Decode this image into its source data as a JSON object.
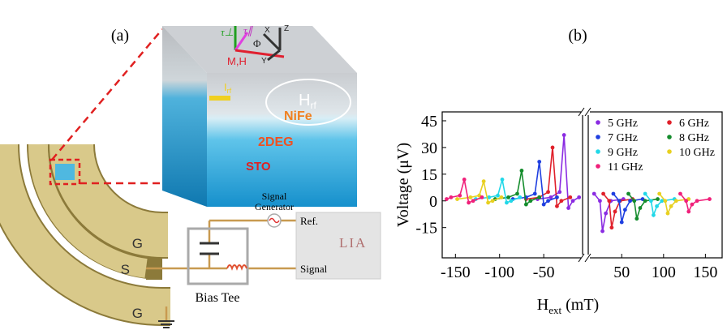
{
  "panel_a": {
    "label": "(a)",
    "layers": [
      "NiFe",
      "2DEG",
      "STO"
    ],
    "pads": [
      "G",
      "S",
      "G"
    ],
    "signal_generator": [
      "Signal",
      "Generator"
    ],
    "ref": "Ref.",
    "lia": "LIA",
    "signal": "Signal",
    "bias_tee": "Bias Tee",
    "vectors": {
      "tau_perp": "τ⊥",
      "tau_par": "τ∥",
      "phi": "Φ",
      "mh": "M,H",
      "x": "X",
      "y": "Y",
      "z": "Z",
      "irf": "I",
      "irf_sub": "rf",
      "hrf": "H",
      "hrf_sub": "rf"
    }
  },
  "chart_data": {
    "type": "line",
    "title": "(b)",
    "ylabel": "Voltage (μV)",
    "xlabel": "H",
    "xlabel_sub": "ext",
    "xlabel_unit": " (mT)",
    "xlim": [
      -165,
      170
    ],
    "xbreak": [
      -6,
      10
    ],
    "xticks": [
      -150,
      -100,
      -50,
      50,
      100,
      150
    ],
    "ylim": [
      -32,
      50
    ],
    "yticks": [
      -15,
      0,
      15,
      30,
      45
    ],
    "series": [
      {
        "name": "5 GHz",
        "color": "#8a2be2",
        "x": [
          -57,
          -42,
          -32,
          -27,
          -22,
          -17,
          -10,
          17,
          24,
          27,
          31,
          37,
          52
        ],
        "values": [
          1,
          2,
          5,
          37,
          -4,
          0,
          2,
          4,
          0,
          -17,
          -7,
          0,
          1
        ]
      },
      {
        "name": "6 GHz",
        "color": "#e0202a",
        "x": [
          -70,
          -55,
          -45,
          -40,
          -35,
          -30,
          -20,
          28,
          35,
          38,
          42,
          48,
          63
        ],
        "values": [
          1,
          2,
          5,
          30,
          -3,
          0,
          2,
          4,
          0,
          -15,
          -6,
          0,
          1
        ]
      },
      {
        "name": "7 GHz",
        "color": "#1f3fe0",
        "x": [
          -85,
          -70,
          -60,
          -55,
          -50,
          -45,
          -35,
          40,
          47,
          50,
          54,
          60,
          75
        ],
        "values": [
          1,
          2,
          4,
          22,
          -2,
          0,
          2,
          4,
          0,
          -12,
          -5,
          0,
          1
        ]
      },
      {
        "name": "8 GHz",
        "color": "#148c2c",
        "x": [
          -105,
          -90,
          -80,
          -75,
          -70,
          -65,
          -55,
          58,
          65,
          68,
          72,
          78,
          93
        ],
        "values": [
          1,
          2,
          4,
          17,
          -2,
          0,
          2,
          4,
          0,
          -10,
          -4,
          0,
          1
        ]
      },
      {
        "name": "9 GHz",
        "color": "#22d8e8",
        "x": [
          -127,
          -112,
          -102,
          -97,
          -92,
          -87,
          -77,
          78,
          85,
          88,
          92,
          98,
          113
        ],
        "values": [
          1,
          2,
          3,
          12,
          -1,
          0,
          2,
          4,
          0,
          -8,
          -3,
          0,
          1
        ]
      },
      {
        "name": "10 GHz",
        "color": "#e8d020",
        "x": [
          -148,
          -133,
          -123,
          -118,
          -113,
          -108,
          -98,
          95,
          102,
          105,
          109,
          115,
          130
        ],
        "values": [
          1,
          2,
          3,
          11,
          -1,
          0,
          2,
          4,
          0,
          -7,
          -3,
          0,
          1
        ]
      },
      {
        "name": "11 GHz",
        "color": "#f0207a",
        "x": [
          -160,
          -155,
          -145,
          -140,
          -135,
          -130,
          -120,
          120,
          127,
          130,
          134,
          140,
          155
        ],
        "values": [
          1,
          2,
          3,
          12,
          -1,
          0,
          2,
          4,
          0,
          -6,
          -2,
          0,
          1
        ]
      }
    ]
  }
}
